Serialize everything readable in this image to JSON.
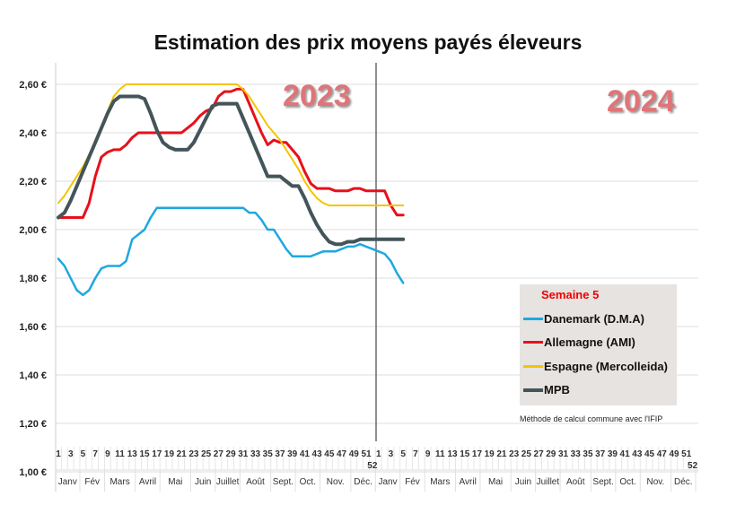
{
  "chart_data": {
    "type": "line",
    "title": "Estimation des prix moyens payés éleveurs",
    "year_labels": [
      "2023",
      "2024"
    ],
    "ylim": [
      1.0,
      2.6
    ],
    "yticks": [
      "1,00 €",
      "1,20 €",
      "1,40 €",
      "1,60 €",
      "1,80 €",
      "2,00 €",
      "2,20 €",
      "2,40 €",
      "2,60 €"
    ],
    "ytick_values": [
      1.0,
      1.2,
      1.4,
      1.6,
      1.8,
      2.0,
      2.2,
      2.4,
      2.6
    ],
    "grid": true,
    "x_week_labels": [
      "1",
      "3",
      "5",
      "7",
      "9",
      "11",
      "13",
      "15",
      "17",
      "19",
      "21",
      "23",
      "25",
      "27",
      "29",
      "31",
      "33",
      "35",
      "37",
      "39",
      "41",
      "43",
      "45",
      "47",
      "49",
      "51",
      "52"
    ],
    "months": [
      "Janv",
      "Fév",
      "Mars",
      "Avril",
      "Mai",
      "Juin",
      "Juillet",
      "Août",
      "Sept.",
      "Oct.",
      "Nov.",
      "Déc."
    ],
    "x_note": "weeks 1-52 of 2023 followed by weeks 1-52 of 2024; data through week 5 of 2024",
    "legend": {
      "title": "Semaine 5",
      "placement": "bottom-right",
      "note": "Méthode de calcul commune avec l'IFIP"
    },
    "series": [
      {
        "name": "Danemark (D.M.A)",
        "color": "#1ea8e0",
        "values": [
          1.88,
          1.85,
          1.8,
          1.75,
          1.73,
          1.75,
          1.8,
          1.84,
          1.85,
          1.85,
          1.85,
          1.87,
          1.96,
          1.98,
          2.0,
          2.05,
          2.09,
          2.09,
          2.09,
          2.09,
          2.09,
          2.09,
          2.09,
          2.09,
          2.09,
          2.09,
          2.09,
          2.09,
          2.09,
          2.09,
          2.09,
          2.07,
          2.07,
          2.04,
          2.0,
          2.0,
          1.96,
          1.92,
          1.89,
          1.89,
          1.89,
          1.89,
          1.9,
          1.91,
          1.91,
          1.91,
          1.92,
          1.93,
          1.93,
          1.94,
          1.93,
          1.92,
          1.91,
          1.9,
          1.87,
          1.82,
          1.78
        ]
      },
      {
        "name": "Allemagne (AMI)",
        "color": "#e8101a",
        "values": [
          2.05,
          2.05,
          2.05,
          2.05,
          2.05,
          2.11,
          2.22,
          2.3,
          2.32,
          2.33,
          2.33,
          2.35,
          2.38,
          2.4,
          2.4,
          2.4,
          2.4,
          2.4,
          2.4,
          2.4,
          2.4,
          2.42,
          2.44,
          2.47,
          2.49,
          2.5,
          2.55,
          2.57,
          2.57,
          2.58,
          2.58,
          2.52,
          2.46,
          2.4,
          2.35,
          2.37,
          2.36,
          2.36,
          2.33,
          2.3,
          2.24,
          2.19,
          2.17,
          2.17,
          2.17,
          2.16,
          2.16,
          2.16,
          2.17,
          2.17,
          2.16,
          2.16,
          2.16,
          2.16,
          2.1,
          2.06,
          2.06
        ]
      },
      {
        "name": "Espagne (Mercolleida)",
        "color": "#f5c400",
        "values": [
          2.11,
          2.14,
          2.18,
          2.22,
          2.26,
          2.31,
          2.36,
          2.42,
          2.49,
          2.55,
          2.58,
          2.6,
          2.6,
          2.6,
          2.6,
          2.6,
          2.6,
          2.6,
          2.6,
          2.6,
          2.6,
          2.6,
          2.6,
          2.6,
          2.6,
          2.6,
          2.6,
          2.6,
          2.6,
          2.6,
          2.58,
          2.55,
          2.51,
          2.47,
          2.43,
          2.4,
          2.37,
          2.33,
          2.29,
          2.25,
          2.2,
          2.16,
          2.13,
          2.11,
          2.1,
          2.1,
          2.1,
          2.1,
          2.1,
          2.1,
          2.1,
          2.1,
          2.1,
          2.1,
          2.1,
          2.1,
          2.1
        ]
      },
      {
        "name": "MPB",
        "color": "#44555a",
        "values": [
          2.05,
          2.07,
          2.12,
          2.18,
          2.24,
          2.3,
          2.36,
          2.42,
          2.48,
          2.53,
          2.55,
          2.55,
          2.55,
          2.55,
          2.54,
          2.48,
          2.41,
          2.36,
          2.34,
          2.33,
          2.33,
          2.33,
          2.36,
          2.41,
          2.46,
          2.51,
          2.52,
          2.52,
          2.52,
          2.52,
          2.46,
          2.4,
          2.34,
          2.28,
          2.22,
          2.22,
          2.22,
          2.2,
          2.18,
          2.18,
          2.13,
          2.07,
          2.02,
          1.98,
          1.95,
          1.94,
          1.94,
          1.95,
          1.95,
          1.96,
          1.96,
          1.96,
          1.96,
          1.96,
          1.96,
          1.96,
          1.96
        ]
      }
    ]
  }
}
